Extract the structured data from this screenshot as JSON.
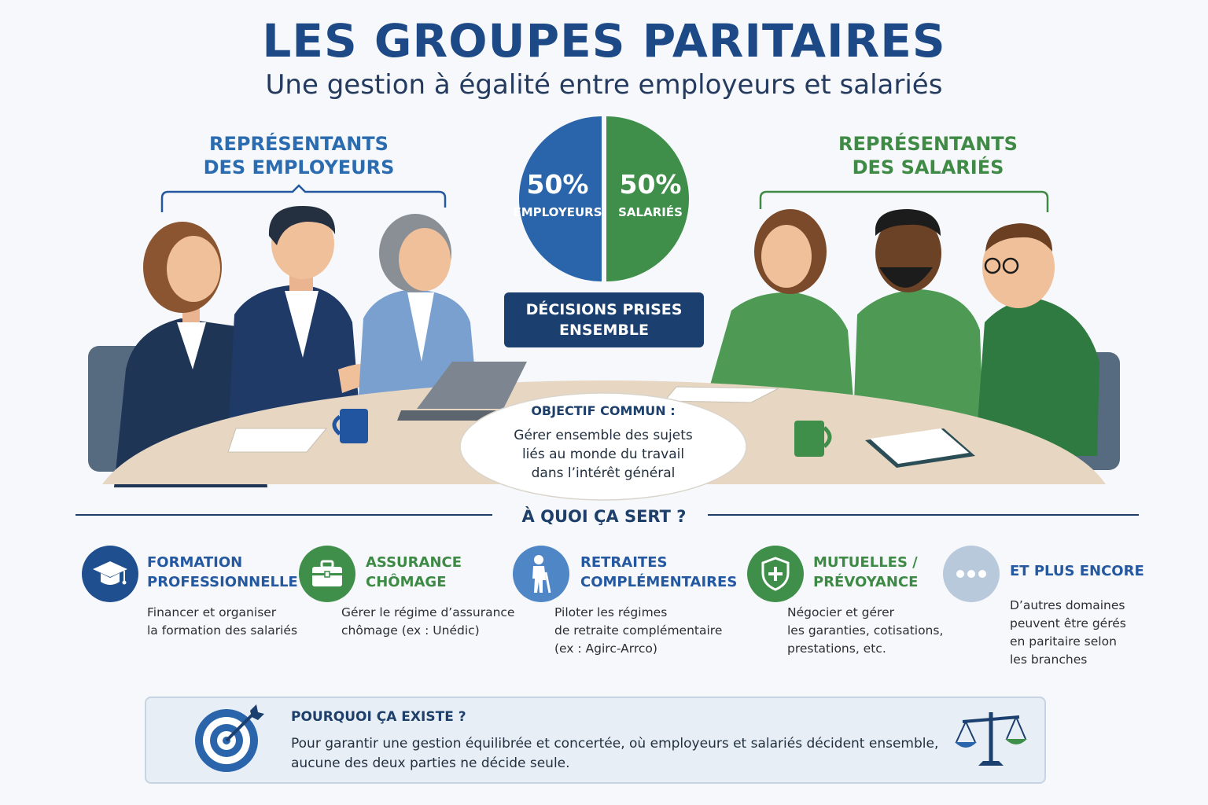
{
  "header": {
    "title": "LES GROUPES PARITAIRES",
    "subtitle": "Une gestion à égalité entre employeurs et salariés"
  },
  "groups": {
    "employers_line1": "REPRÉSENTANTS",
    "employers_line2": "DES EMPLOYEURS",
    "employees_line1": "REPRÉSENTANTS",
    "employees_line2": "DES SALARIÉS"
  },
  "chart_data": {
    "type": "pie",
    "categories": [
      "EMPLOYEURS",
      "SALARIÉS"
    ],
    "values": [
      50,
      50
    ],
    "labels": [
      "50%",
      "50%"
    ],
    "colors": [
      "#2a64ab",
      "#3f8f4a"
    ]
  },
  "decision": {
    "line1": "DÉCISIONS PRISES",
    "line2": "ENSEMBLE"
  },
  "objective": {
    "title": "OBJECTIF COMMUN :",
    "line1": "Gérer ensemble des sujets",
    "line2": "liés au monde du travail",
    "line3": "dans l’intérêt général"
  },
  "section": {
    "title": "À QUOI ÇA SERT ?"
  },
  "services": [
    {
      "title1": "FORMATION",
      "title2": "PROFESSIONNELLE",
      "desc1": "Financer et organiser",
      "desc2": "la formation des salariés",
      "icon": "graduation-cap-icon",
      "color": "#1f4f8f"
    },
    {
      "title1": "ASSURANCE",
      "title2": "CHÔMAGE",
      "desc1": "Gérer le régime d’assurance",
      "desc2": "chômage (ex : Unédic)",
      "icon": "briefcase-icon",
      "color": "#3f8f4a"
    },
    {
      "title1": "RETRAITES",
      "title2": "COMPLÉMENTAIRES",
      "desc1": "Piloter les régimes",
      "desc2": "de retraite complémentaire",
      "desc3": "(ex : Agirc-Arrco)",
      "icon": "elderly-person-icon",
      "color": "#4f86c6"
    },
    {
      "title1": "MUTUELLES /",
      "title2": "PRÉVOYANCE",
      "desc1": "Négocier et gérer",
      "desc2": "les garanties, cotisations,",
      "desc3": "prestations, etc.",
      "icon": "shield-icon",
      "color": "#3f8f4a"
    },
    {
      "title1": "ET PLUS ENCORE",
      "desc1": "D’autres domaines",
      "desc2": "peuvent être gérés",
      "desc3": "en paritaire selon",
      "desc4": "les branches",
      "icon": "more-dots-icon",
      "color": "#b9c9dc"
    }
  ],
  "why": {
    "title": "POURQUOI ÇA EXISTE ?",
    "line1": "Pour garantir une gestion équilibrée et concertée, où employeurs et salariés décident ensemble,",
    "line2": "aucune des deux parties ne décide seule."
  }
}
